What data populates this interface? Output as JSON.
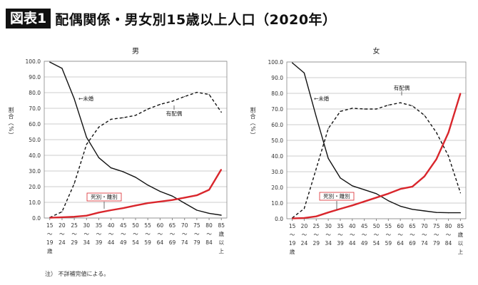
{
  "header": {
    "badge": "図表1",
    "title": "配偶関係・男女別15歳以上人口（2020年）"
  },
  "note": "注） 不詳補完値による。",
  "chart_data": [
    {
      "type": "line",
      "title": "男",
      "ylabel": "割合（%）",
      "ylim": [
        0,
        100
      ],
      "yticks": [
        "0.0",
        "10.0",
        "20.0",
        "30.0",
        "40.0",
        "50.0",
        "60.0",
        "70.0",
        "80.0",
        "90.0",
        "100.0"
      ],
      "grid": true,
      "categories": [
        [
          "15",
          "〜",
          "19",
          "歳"
        ],
        [
          "20",
          "〜",
          "24"
        ],
        [
          "25",
          "〜",
          "29"
        ],
        [
          "30",
          "〜",
          "34"
        ],
        [
          "35",
          "〜",
          "39"
        ],
        [
          "40",
          "〜",
          "44"
        ],
        [
          "45",
          "〜",
          "49"
        ],
        [
          "50",
          "〜",
          "54"
        ],
        [
          "55",
          "〜",
          "59"
        ],
        [
          "60",
          "〜",
          "64"
        ],
        [
          "65",
          "〜",
          "69"
        ],
        [
          "70",
          "〜",
          "74"
        ],
        [
          "75",
          "〜",
          "79"
        ],
        [
          "80",
          "〜",
          "84"
        ],
        [
          "85",
          "歳",
          "以",
          "上"
        ]
      ],
      "series": [
        {
          "name": "←未婚",
          "style": "solid",
          "color": "#111111",
          "values": [
            99.5,
            95.5,
            76,
            51.5,
            38.5,
            32,
            29.5,
            26,
            21,
            17,
            14,
            9.5,
            5,
            3,
            1.8
          ]
        },
        {
          "name": "有配偶",
          "style": "dashed",
          "color": "#111111",
          "values": [
            0.3,
            4,
            22,
            47,
            58,
            63,
            64,
            65.5,
            69.5,
            72.5,
            74.5,
            77.5,
            80.2,
            78.8,
            67.5
          ]
        },
        {
          "name": "死別・離別",
          "style": "solid",
          "color": "#d9262c",
          "values": [
            0.2,
            0.5,
            0.8,
            1.5,
            3.5,
            5,
            6.3,
            8,
            9.5,
            10.5,
            11.5,
            13,
            14.5,
            18,
            31
          ]
        }
      ]
    },
    {
      "type": "line",
      "title": "女",
      "ylabel": "割合（%）",
      "ylim": [
        0,
        100
      ],
      "yticks": [
        "0.0",
        "10.0",
        "20.0",
        "30.0",
        "40.0",
        "50.0",
        "60.0",
        "70.0",
        "80.0",
        "90.0",
        "100.0"
      ],
      "grid": true,
      "categories": [
        [
          "15",
          "〜",
          "19",
          "歳"
        ],
        [
          "20",
          "〜",
          "24"
        ],
        [
          "25",
          "〜",
          "29"
        ],
        [
          "30",
          "〜",
          "34"
        ],
        [
          "35",
          "〜",
          "39"
        ],
        [
          "40",
          "〜",
          "44"
        ],
        [
          "45",
          "〜",
          "49"
        ],
        [
          "50",
          "〜",
          "54"
        ],
        [
          "55",
          "〜",
          "59"
        ],
        [
          "60",
          "〜",
          "64"
        ],
        [
          "65",
          "〜",
          "69"
        ],
        [
          "70",
          "〜",
          "74"
        ],
        [
          "75",
          "〜",
          "79"
        ],
        [
          "80",
          "〜",
          "84"
        ],
        [
          "85",
          "歳",
          "以",
          "上"
        ]
      ],
      "series": [
        {
          "name": "←未婚",
          "style": "solid",
          "color": "#111111",
          "values": [
            99.5,
            93,
            65,
            38.5,
            26,
            21,
            18.5,
            16,
            11.5,
            8,
            6,
            5,
            4,
            3.8,
            3.8
          ]
        },
        {
          "name": "有配偶",
          "style": "dashed",
          "color": "#111111",
          "values": [
            0.5,
            6.5,
            32,
            57.5,
            68.5,
            70.5,
            70,
            70,
            72.5,
            74,
            72,
            66,
            55,
            40,
            16.5
          ]
        },
        {
          "name": "死別・離別",
          "style": "solid",
          "color": "#d9262c",
          "values": [
            0.2,
            0.5,
            1.5,
            4,
            6.3,
            8.5,
            11,
            13.5,
            16,
            19,
            20.5,
            27,
            38,
            55,
            80
          ]
        }
      ]
    }
  ]
}
